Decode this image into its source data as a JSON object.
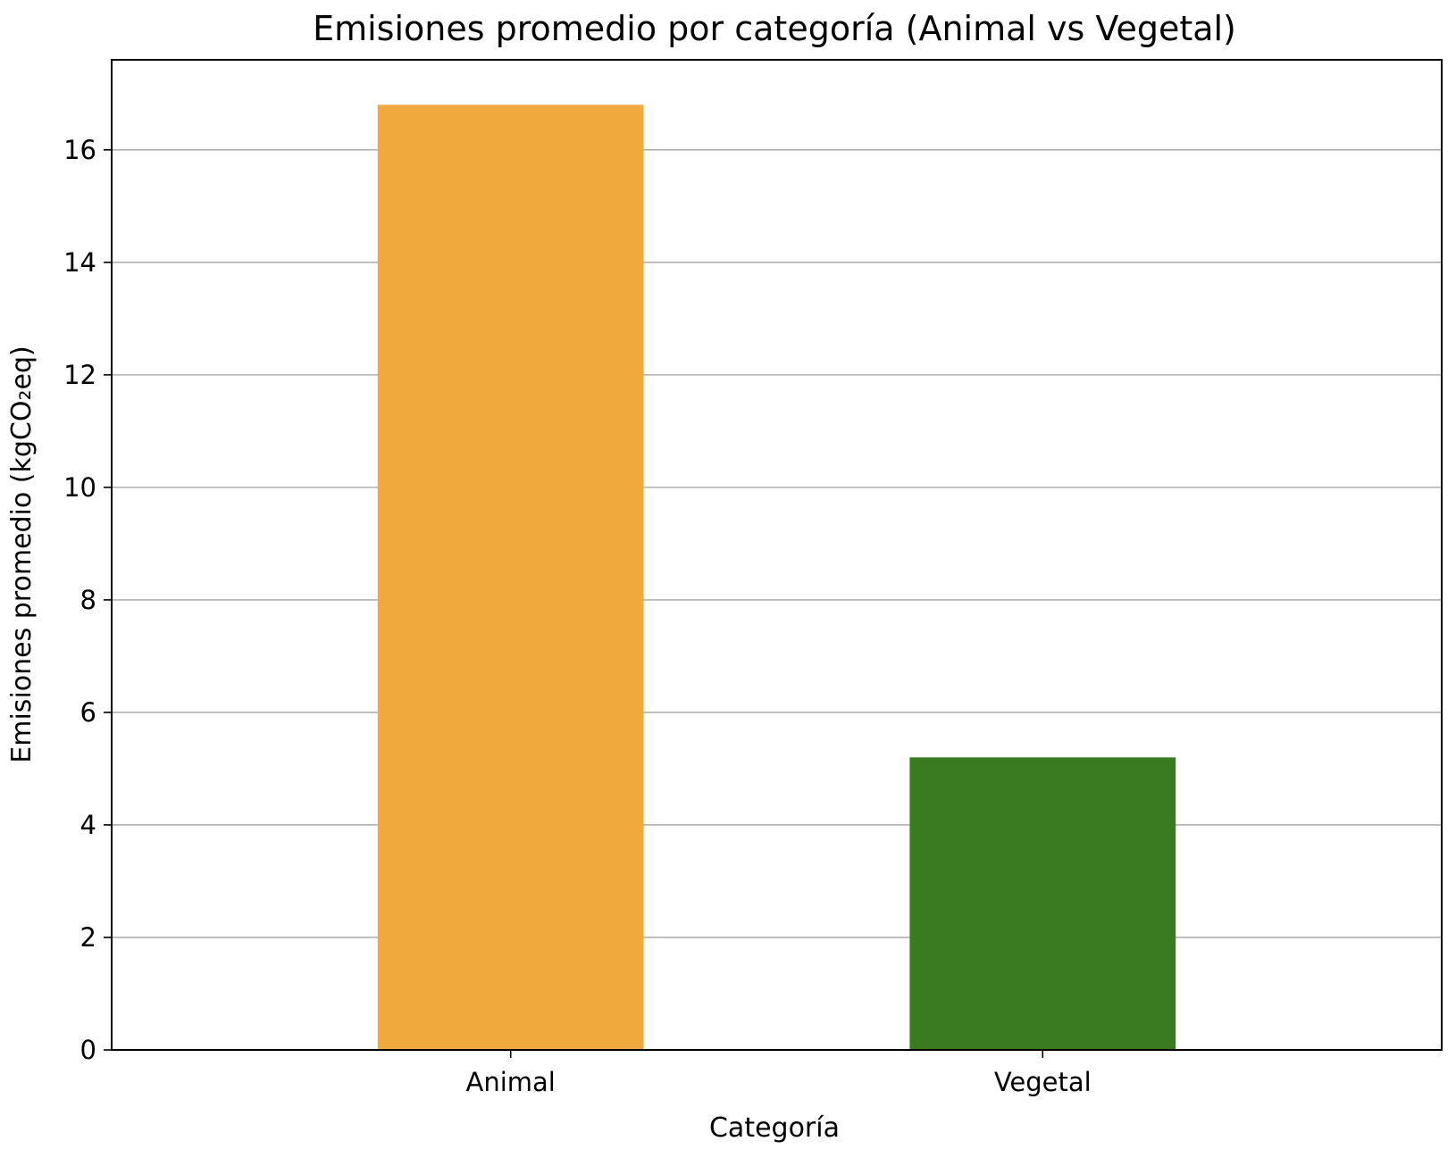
{
  "chart_data": {
    "type": "bar",
    "title": "Emisiones promedio por categoría (Animal vs Vegetal)",
    "xlabel": "Categoría",
    "ylabel": "Emisiones promedio (kgCO₂eq)",
    "categories": [
      "Animal",
      "Vegetal"
    ],
    "values": [
      16.8,
      5.2
    ],
    "colors": [
      "#F0A93C",
      "#3A7B22"
    ],
    "ylim": [
      0,
      17.6
    ],
    "yticks": [
      0,
      2,
      4,
      6,
      8,
      10,
      12,
      14,
      16
    ],
    "grid": "y"
  }
}
